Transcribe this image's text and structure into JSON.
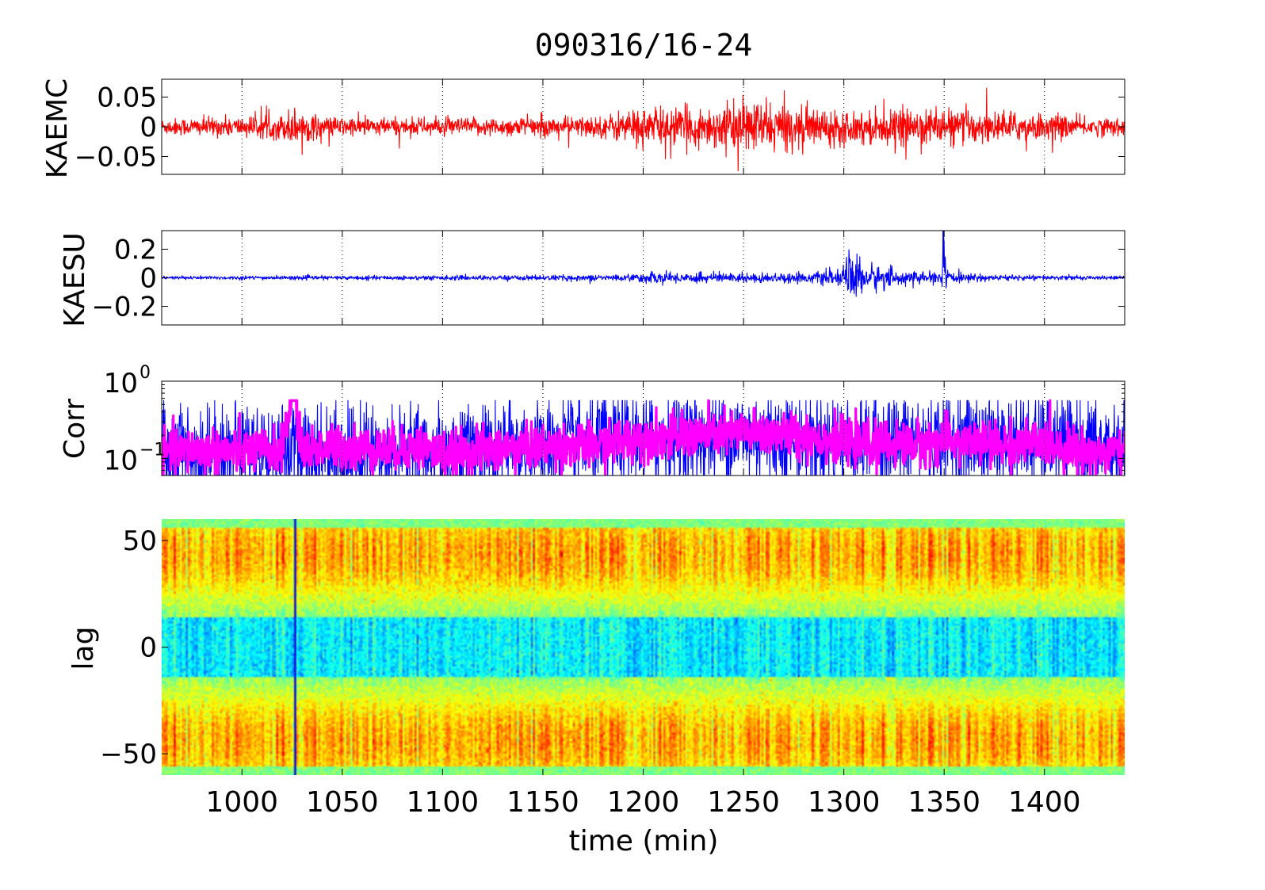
{
  "figure": {
    "title": "090316/16-24",
    "xlabel": "time (min)"
  },
  "chart_data": [
    {
      "type": "line",
      "ylabel": "KAEMC",
      "xlim": [
        960,
        1440
      ],
      "ylim": [
        -0.08,
        0.08
      ],
      "yticks": [
        0.05,
        0,
        -0.05
      ],
      "ytick_labels": [
        "0.05",
        "0",
        "−0.05"
      ],
      "xticks": [
        1000,
        1050,
        1100,
        1150,
        1200,
        1250,
        1300,
        1350,
        1400
      ],
      "grid": "x-dotted",
      "series": [
        {
          "color": "#ff0000",
          "x": [
            960,
            980,
            1000,
            1020,
            1025,
            1040,
            1060,
            1080,
            1100,
            1120,
            1140,
            1160,
            1180,
            1190,
            1200,
            1220,
            1240,
            1255,
            1260,
            1280,
            1300,
            1320,
            1340,
            1360,
            1380,
            1400,
            1420,
            1440
          ],
          "amplitude": [
            0.012,
            0.014,
            0.015,
            0.018,
            0.03,
            0.015,
            0.014,
            0.013,
            0.013,
            0.013,
            0.014,
            0.015,
            0.016,
            0.025,
            0.03,
            0.028,
            0.032,
            0.04,
            0.038,
            0.03,
            0.025,
            0.025,
            0.028,
            0.025,
            0.022,
            0.02,
            0.014,
            0.013
          ]
        }
      ]
    },
    {
      "type": "line",
      "ylabel": "KAESU",
      "xlim": [
        960,
        1440
      ],
      "ylim": [
        -0.33,
        0.33
      ],
      "yticks": [
        0.2,
        0,
        -0.2
      ],
      "ytick_labels": [
        "0.2",
        "0",
        "−0.2"
      ],
      "xticks": [
        1000,
        1050,
        1100,
        1150,
        1200,
        1250,
        1300,
        1350,
        1400
      ],
      "grid": "x-dotted",
      "series": [
        {
          "color": "#0000ff",
          "x": [
            960,
            1000,
            1050,
            1100,
            1150,
            1195,
            1200,
            1240,
            1280,
            1300,
            1302,
            1310,
            1330,
            1348,
            1350,
            1352,
            1370,
            1400,
            1440
          ],
          "amplitude": [
            0.01,
            0.012,
            0.012,
            0.014,
            0.016,
            0.02,
            0.035,
            0.03,
            0.03,
            0.05,
            0.18,
            0.1,
            0.04,
            0.03,
            0.33,
            0.03,
            0.02,
            0.015,
            0.01
          ]
        }
      ]
    },
    {
      "type": "line",
      "ylabel": "Corr",
      "yscale": "log",
      "xlim": [
        960,
        1440
      ],
      "ylim": [
        0.06,
        1
      ],
      "yticks": [
        1,
        0.1
      ],
      "ytick_labels": [
        {
          "base": "10",
          "exp": "0"
        },
        {
          "base": "10",
          "exp": "−1"
        }
      ],
      "xticks": [
        1000,
        1050,
        1100,
        1150,
        1200,
        1250,
        1300,
        1350,
        1400
      ],
      "grid": "x-dotted",
      "series": [
        {
          "color": "#0000ff",
          "x": [
            960,
            1000,
            1050,
            1100,
            1150,
            1200,
            1250,
            1300,
            1350,
            1400,
            1440
          ],
          "level": [
            0.12,
            0.13,
            0.12,
            0.12,
            0.14,
            0.17,
            0.2,
            0.16,
            0.17,
            0.16,
            0.13
          ]
        },
        {
          "color": "#ff00ff",
          "x": [
            960,
            980,
            1000,
            1020,
            1025,
            1030,
            1050,
            1070,
            1090,
            1100,
            1120,
            1150,
            1180,
            1200,
            1220,
            1250,
            1280,
            1300,
            1330,
            1350,
            1380,
            1400,
            1420,
            1440
          ],
          "level": [
            0.12,
            0.13,
            0.12,
            0.13,
            0.5,
            0.13,
            0.14,
            0.13,
            0.14,
            0.11,
            0.13,
            0.14,
            0.15,
            0.19,
            0.19,
            0.22,
            0.2,
            0.16,
            0.15,
            0.17,
            0.15,
            0.16,
            0.12,
            0.12
          ]
        }
      ]
    },
    {
      "type": "heatmap",
      "ylabel": "lag",
      "xlim": [
        960,
        1440
      ],
      "ylim": [
        -60,
        60
      ],
      "yticks": [
        50,
        0,
        -50
      ],
      "ytick_labels": [
        "50",
        "0",
        "−50"
      ],
      "xticks": [
        1000,
        1050,
        1100,
        1150,
        1200,
        1250,
        1300,
        1350,
        1400
      ],
      "xtick_labels": [
        "1000",
        "1050",
        "1100",
        "1150",
        "1200",
        "1250",
        "1300",
        "1350",
        "1400"
      ],
      "colormap": "jet",
      "pattern": {
        "lag_high_band": [
          20,
          60
        ],
        "lag_center_band": [
          -15,
          15
        ],
        "lag_low_band": [
          -60,
          -20
        ],
        "dark_vertical_line_at": 1026
      }
    }
  ]
}
